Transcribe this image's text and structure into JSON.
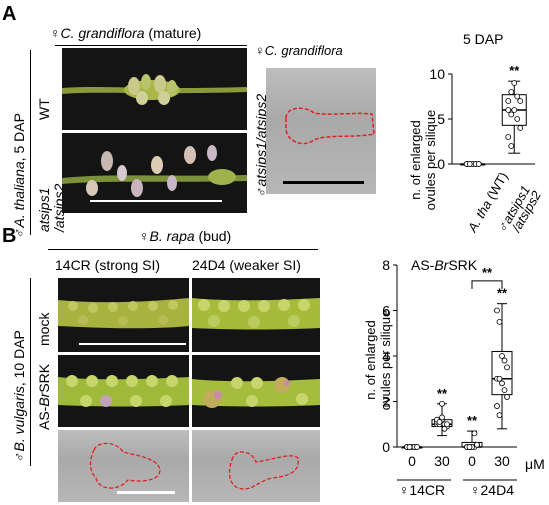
{
  "panel_a": {
    "letter": "A",
    "species_mature": "C. grandiflora",
    "species_mature_suffix": " (mature)",
    "species_dic": "C. grandiflora",
    "male_label": "A. thaliana",
    "male_suffix": ", 5 DAP",
    "row_wt": "WT",
    "row_mut_1": "atsips1",
    "row_mut_2": "/atsips2",
    "dic_label": "atsips1/atsips2",
    "female_symbol": "♀",
    "male_symbol": "♂"
  },
  "panel_b": {
    "letter": "B",
    "species": "B. rapa",
    "species_suffix": " (bud)",
    "col1": "14CR (strong SI)",
    "col2": "24D4 (weaker SI)",
    "male_label": "B. vulgaris",
    "male_suffix": ", 10 DAP",
    "row_mock": "mock",
    "row_as_prefix": "AS-",
    "row_as_italic": "Br",
    "row_as_suffix": "SRK",
    "female_symbol": "♀",
    "male_symbol": "♂"
  },
  "chart_data": [
    {
      "type": "box",
      "title": "5 DAP",
      "ylabel_line1": "n. of enlarged",
      "ylabel_line2": "ovules per silique",
      "ylim": [
        0,
        10
      ],
      "yticks": [
        "0",
        "5",
        "10"
      ],
      "xlabels": [
        {
          "prefix": "",
          "italic": "A. tha",
          "suffix": " (WT)"
        },
        {
          "prefix": "♂",
          "italic": "atsips1",
          "line2": "/atsips2"
        }
      ],
      "series": [
        {
          "points": [
            0,
            0,
            0,
            0,
            0,
            0,
            0,
            0,
            0,
            0,
            0,
            0
          ],
          "box": [
            0,
            0,
            0,
            0,
            0
          ]
        },
        {
          "points": [
            7,
            8,
            9,
            7.5,
            7,
            6,
            5.5,
            6,
            5,
            4,
            3,
            2
          ],
          "box": [
            1.2,
            4.3,
            6,
            7.7,
            9.2
          ],
          "significance": "**"
        }
      ]
    },
    {
      "type": "box",
      "title_prefix": "AS-",
      "title_italic": "Br",
      "title_suffix": "SRK",
      "ylabel_line1": "n. of enlarged",
      "ylabel_line2": "ovules per silique",
      "ylim": [
        0,
        8
      ],
      "yticks": [
        "0",
        "2",
        "4",
        "6",
        "8"
      ],
      "xticks": [
        "0",
        "30",
        "0",
        "30"
      ],
      "xunit": "μM",
      "groups": [
        "♀14CR",
        "♀24D4"
      ],
      "series": [
        {
          "points": [
            0,
            0,
            0,
            0,
            0,
            0,
            0,
            0,
            0,
            0,
            0,
            0
          ],
          "box": [
            0,
            0,
            0,
            0,
            0
          ]
        },
        {
          "points": [
            1.0,
            1.1,
            1.2,
            1.0,
            0.9,
            1.1,
            1.0,
            1.3,
            0.8,
            1.0,
            1.2,
            1.1,
            1.9
          ],
          "box": [
            0.5,
            0.9,
            1.0,
            1.2,
            1.9
          ],
          "significance": "**"
        },
        {
          "points": [
            0,
            0,
            0,
            0,
            0.1,
            0,
            0,
            0,
            0.6,
            0.1,
            0,
            0
          ],
          "box": [
            0,
            0,
            0,
            0.2,
            0.7
          ],
          "significance": "**"
        },
        {
          "points": [
            6.0,
            5.5,
            4.0,
            3.8,
            3.5,
            3.0,
            3.0,
            2.8,
            2.5,
            2.2,
            1.8,
            1.4
          ],
          "box": [
            0.8,
            2.3,
            3.0,
            4.2,
            6.3
          ],
          "significance": "**"
        }
      ],
      "bracket_significance": "**"
    }
  ]
}
